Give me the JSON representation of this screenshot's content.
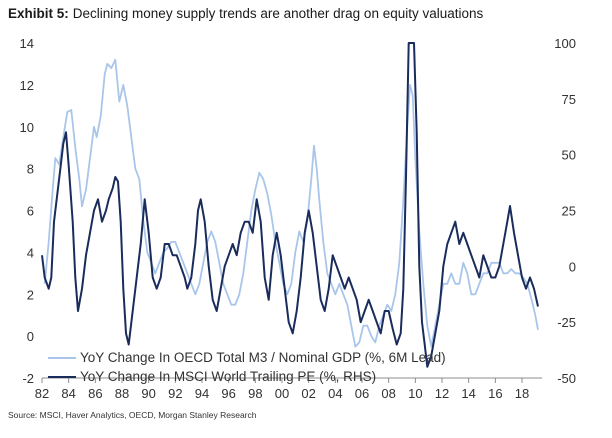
{
  "header": {
    "exhibit_label": "Exhibit 5:",
    "title": "Declining money supply trends are another drag on equity valuations"
  },
  "source": "Source: MSCI, Haver Analytics, OECD, Morgan Stanley Research",
  "colors": {
    "m3_series": "#a9c6ea",
    "pe_series": "#1a2c5b",
    "axis": "#8c8c8c",
    "text": "#333333"
  },
  "chart_data": {
    "type": "line",
    "title": "Declining money supply trends are another drag on equity valuations",
    "xlabel": "",
    "ylabel": "",
    "grid": false,
    "legend_position": "bottom-left",
    "x_ticks": [
      "82",
      "84",
      "86",
      "88",
      "90",
      "92",
      "94",
      "96",
      "98",
      "00",
      "02",
      "04",
      "06",
      "08",
      "10",
      "12",
      "14",
      "16",
      "18"
    ],
    "x_tick_years": [
      1982,
      1984,
      1986,
      1988,
      1990,
      1992,
      1994,
      1996,
      1998,
      2000,
      2002,
      2004,
      2006,
      2008,
      2010,
      2012,
      2014,
      2016,
      2018
    ],
    "xlim": [
      1982,
      2019.5
    ],
    "y_left": {
      "ticks": [
        14,
        12,
        10,
        8,
        6,
        4,
        2,
        0,
        -2
      ],
      "ylim": [
        -2,
        14
      ]
    },
    "y_right": {
      "ticks": [
        100,
        75,
        50,
        25,
        0,
        -25,
        -50
      ],
      "ylim": [
        -50,
        100
      ]
    },
    "series": [
      {
        "name": "YoY Change In OECD Total M3 / Nominal GDP (%, 6M Lead)",
        "axis": "left",
        "points": [
          [
            1982.2,
            2.5
          ],
          [
            1982.5,
            4.5
          ],
          [
            1982.8,
            7.0
          ],
          [
            1983.0,
            8.5
          ],
          [
            1983.3,
            8.2
          ],
          [
            1983.6,
            9.5
          ],
          [
            1983.9,
            10.7
          ],
          [
            1984.2,
            10.8
          ],
          [
            1984.5,
            9.0
          ],
          [
            1984.8,
            7.5
          ],
          [
            1985.0,
            6.2
          ],
          [
            1985.3,
            7.0
          ],
          [
            1985.6,
            8.5
          ],
          [
            1985.9,
            10.0
          ],
          [
            1986.1,
            9.5
          ],
          [
            1986.4,
            10.5
          ],
          [
            1986.7,
            12.5
          ],
          [
            1986.9,
            13.0
          ],
          [
            1987.2,
            12.8
          ],
          [
            1987.5,
            13.2
          ],
          [
            1987.8,
            11.2
          ],
          [
            1988.1,
            12.0
          ],
          [
            1988.4,
            11.0
          ],
          [
            1988.7,
            9.5
          ],
          [
            1989.0,
            8.0
          ],
          [
            1989.3,
            7.5
          ],
          [
            1989.6,
            5.5
          ],
          [
            1989.9,
            4.0
          ],
          [
            1990.2,
            3.5
          ],
          [
            1990.5,
            3.0
          ],
          [
            1990.8,
            3.5
          ],
          [
            1991.1,
            4.0
          ],
          [
            1991.4,
            4.2
          ],
          [
            1991.7,
            4.5
          ],
          [
            1992.0,
            4.5
          ],
          [
            1992.3,
            4.0
          ],
          [
            1992.6,
            3.5
          ],
          [
            1992.9,
            3.0
          ],
          [
            1993.2,
            2.5
          ],
          [
            1993.5,
            2.0
          ],
          [
            1993.8,
            2.5
          ],
          [
            1994.1,
            3.5
          ],
          [
            1994.4,
            4.5
          ],
          [
            1994.7,
            5.0
          ],
          [
            1995.0,
            4.5
          ],
          [
            1995.3,
            3.5
          ],
          [
            1995.6,
            2.5
          ],
          [
            1995.9,
            2.0
          ],
          [
            1996.2,
            1.5
          ],
          [
            1996.5,
            1.5
          ],
          [
            1996.8,
            2.0
          ],
          [
            1997.1,
            3.0
          ],
          [
            1997.4,
            4.5
          ],
          [
            1997.7,
            6.0
          ],
          [
            1998.0,
            7.0
          ],
          [
            1998.3,
            7.8
          ],
          [
            1998.6,
            7.5
          ],
          [
            1998.9,
            6.8
          ],
          [
            1999.2,
            5.8
          ],
          [
            1999.5,
            4.5
          ],
          [
            1999.8,
            3.5
          ],
          [
            2000.1,
            2.5
          ],
          [
            2000.4,
            2.0
          ],
          [
            2000.7,
            2.5
          ],
          [
            2001.0,
            4.0
          ],
          [
            2001.3,
            5.0
          ],
          [
            2001.6,
            4.5
          ],
          [
            2001.9,
            5.5
          ],
          [
            2002.2,
            7.5
          ],
          [
            2002.4,
            9.1
          ],
          [
            2002.6,
            8.0
          ],
          [
            2002.8,
            6.5
          ],
          [
            2003.1,
            4.5
          ],
          [
            2003.4,
            3.0
          ],
          [
            2003.7,
            2.5
          ],
          [
            2004.0,
            2.0
          ],
          [
            2004.3,
            2.5
          ],
          [
            2004.6,
            2.0
          ],
          [
            2004.9,
            1.5
          ],
          [
            2005.2,
            0.5
          ],
          [
            2005.5,
            -0.5
          ],
          [
            2005.8,
            -0.3
          ],
          [
            2006.1,
            0.5
          ],
          [
            2006.4,
            0.5
          ],
          [
            2006.7,
            0.0
          ],
          [
            2007.0,
            -0.3
          ],
          [
            2007.3,
            0.5
          ],
          [
            2007.6,
            1.0
          ],
          [
            2007.9,
            1.5
          ],
          [
            2008.2,
            1.2
          ],
          [
            2008.5,
            2.0
          ],
          [
            2008.8,
            3.5
          ],
          [
            2009.1,
            6.5
          ],
          [
            2009.4,
            10.0
          ],
          [
            2009.6,
            12.0
          ],
          [
            2009.8,
            11.5
          ],
          [
            2010.0,
            8.5
          ],
          [
            2010.3,
            5.0
          ],
          [
            2010.6,
            2.5
          ],
          [
            2010.9,
            0.5
          ],
          [
            2011.2,
            -0.5
          ],
          [
            2011.5,
            0.5
          ],
          [
            2011.8,
            1.5
          ],
          [
            2012.1,
            2.5
          ],
          [
            2012.4,
            2.5
          ],
          [
            2012.7,
            3.0
          ],
          [
            2013.0,
            2.5
          ],
          [
            2013.3,
            2.5
          ],
          [
            2013.6,
            3.5
          ],
          [
            2013.9,
            3.0
          ],
          [
            2014.2,
            2.0
          ],
          [
            2014.5,
            2.0
          ],
          [
            2014.8,
            2.5
          ],
          [
            2015.1,
            3.0
          ],
          [
            2015.4,
            3.0
          ],
          [
            2015.7,
            3.5
          ],
          [
            2016.0,
            3.5
          ],
          [
            2016.3,
            3.5
          ],
          [
            2016.6,
            3.0
          ],
          [
            2016.9,
            3.0
          ],
          [
            2017.2,
            3.2
          ],
          [
            2017.5,
            3.0
          ],
          [
            2017.8,
            3.0
          ],
          [
            2018.1,
            2.8
          ],
          [
            2018.4,
            2.5
          ],
          [
            2018.7,
            1.8
          ],
          [
            2019.0,
            1.0
          ],
          [
            2019.2,
            0.3
          ]
        ]
      },
      {
        "name": "YoY Change In MSCI World Trailing PE (%, RHS)",
        "axis": "right",
        "points": [
          [
            1982.0,
            5.0
          ],
          [
            1982.2,
            -5.0
          ],
          [
            1982.5,
            -10.0
          ],
          [
            1982.7,
            -5.0
          ],
          [
            1982.9,
            20.0
          ],
          [
            1983.2,
            35.0
          ],
          [
            1983.4,
            45.0
          ],
          [
            1983.6,
            55.0
          ],
          [
            1983.8,
            60.0
          ],
          [
            1984.0,
            45.0
          ],
          [
            1984.3,
            20.0
          ],
          [
            1984.5,
            -5.0
          ],
          [
            1984.7,
            -20.0
          ],
          [
            1985.0,
            -10.0
          ],
          [
            1985.3,
            5.0
          ],
          [
            1985.6,
            15.0
          ],
          [
            1985.9,
            25.0
          ],
          [
            1986.2,
            30.0
          ],
          [
            1986.5,
            20.0
          ],
          [
            1986.8,
            25.0
          ],
          [
            1987.0,
            30.0
          ],
          [
            1987.3,
            35.0
          ],
          [
            1987.5,
            40.0
          ],
          [
            1987.7,
            38.0
          ],
          [
            1987.9,
            20.0
          ],
          [
            1988.1,
            -10.0
          ],
          [
            1988.3,
            -30.0
          ],
          [
            1988.5,
            -35.0
          ],
          [
            1988.8,
            -20.0
          ],
          [
            1989.1,
            -5.0
          ],
          [
            1989.4,
            10.0
          ],
          [
            1989.7,
            30.0
          ],
          [
            1990.0,
            15.0
          ],
          [
            1990.3,
            -5.0
          ],
          [
            1990.6,
            -10.0
          ],
          [
            1990.9,
            -5.0
          ],
          [
            1991.2,
            10.0
          ],
          [
            1991.5,
            10.0
          ],
          [
            1991.8,
            5.0
          ],
          [
            1992.1,
            5.0
          ],
          [
            1992.4,
            0.0
          ],
          [
            1992.7,
            -5.0
          ],
          [
            1992.9,
            -10.0
          ],
          [
            1993.2,
            -5.0
          ],
          [
            1993.5,
            10.0
          ],
          [
            1993.7,
            25.0
          ],
          [
            1993.9,
            30.0
          ],
          [
            1994.2,
            20.0
          ],
          [
            1994.5,
            0.0
          ],
          [
            1994.8,
            -15.0
          ],
          [
            1995.1,
            -20.0
          ],
          [
            1995.4,
            -10.0
          ],
          [
            1995.7,
            0.0
          ],
          [
            1996.0,
            5.0
          ],
          [
            1996.3,
            10.0
          ],
          [
            1996.6,
            5.0
          ],
          [
            1996.9,
            15.0
          ],
          [
            1997.2,
            20.0
          ],
          [
            1997.5,
            20.0
          ],
          [
            1997.8,
            15.0
          ],
          [
            1998.1,
            30.0
          ],
          [
            1998.4,
            20.0
          ],
          [
            1998.7,
            -5.0
          ],
          [
            1999.0,
            -15.0
          ],
          [
            1999.3,
            5.0
          ],
          [
            1999.6,
            15.0
          ],
          [
            1999.9,
            5.0
          ],
          [
            2000.2,
            -10.0
          ],
          [
            2000.5,
            -25.0
          ],
          [
            2000.8,
            -30.0
          ],
          [
            2001.1,
            -20.0
          ],
          [
            2001.4,
            -5.0
          ],
          [
            2001.7,
            15.0
          ],
          [
            2002.0,
            25.0
          ],
          [
            2002.3,
            15.0
          ],
          [
            2002.6,
            0.0
          ],
          [
            2002.9,
            -15.0
          ],
          [
            2003.2,
            -20.0
          ],
          [
            2003.5,
            -10.0
          ],
          [
            2003.8,
            5.0
          ],
          [
            2004.1,
            0.0
          ],
          [
            2004.4,
            -5.0
          ],
          [
            2004.7,
            -10.0
          ],
          [
            2005.0,
            -5.0
          ],
          [
            2005.3,
            -10.0
          ],
          [
            2005.6,
            -15.0
          ],
          [
            2005.9,
            -25.0
          ],
          [
            2006.2,
            -20.0
          ],
          [
            2006.5,
            -15.0
          ],
          [
            2006.8,
            -20.0
          ],
          [
            2007.1,
            -25.0
          ],
          [
            2007.4,
            -30.0
          ],
          [
            2007.7,
            -20.0
          ],
          [
            2008.0,
            -20.0
          ],
          [
            2008.3,
            -28.0
          ],
          [
            2008.6,
            -35.0
          ],
          [
            2008.9,
            -30.0
          ],
          [
            2009.1,
            -10.0
          ],
          [
            2009.3,
            40.0
          ],
          [
            2009.5,
            100.0
          ],
          [
            2009.7,
            100.0
          ],
          [
            2009.9,
            100.0
          ],
          [
            2010.1,
            60.0
          ],
          [
            2010.3,
            0.0
          ],
          [
            2010.5,
            -25.0
          ],
          [
            2010.7,
            -35.0
          ],
          [
            2010.9,
            -45.0
          ],
          [
            2011.2,
            -40.0
          ],
          [
            2011.5,
            -30.0
          ],
          [
            2011.8,
            -20.0
          ],
          [
            2012.1,
            0.0
          ],
          [
            2012.4,
            10.0
          ],
          [
            2012.7,
            15.0
          ],
          [
            2013.0,
            20.0
          ],
          [
            2013.3,
            10.0
          ],
          [
            2013.6,
            15.0
          ],
          [
            2013.9,
            10.0
          ],
          [
            2014.2,
            5.0
          ],
          [
            2014.5,
            0.0
          ],
          [
            2014.8,
            -5.0
          ],
          [
            2015.1,
            5.0
          ],
          [
            2015.4,
            0.0
          ],
          [
            2015.7,
            -5.0
          ],
          [
            2016.0,
            -5.0
          ],
          [
            2016.3,
            0.0
          ],
          [
            2016.6,
            10.0
          ],
          [
            2016.9,
            20.0
          ],
          [
            2017.1,
            27.0
          ],
          [
            2017.4,
            15.0
          ],
          [
            2017.7,
            5.0
          ],
          [
            2018.0,
            -5.0
          ],
          [
            2018.3,
            -10.0
          ],
          [
            2018.6,
            -5.0
          ],
          [
            2018.9,
            -10.0
          ],
          [
            2019.2,
            -18.0
          ]
        ]
      }
    ]
  }
}
